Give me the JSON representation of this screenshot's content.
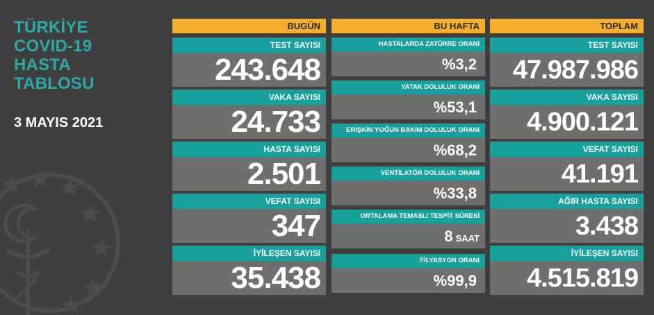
{
  "title_lines": [
    "TÜRKİYE",
    "COVID-19",
    "HASTA",
    "TABLOSU"
  ],
  "date": "3 MAYIS 2021",
  "colors": {
    "header": "#f5ad2d",
    "label": "#18a09c",
    "value_bg": "#6f6f6f",
    "title": "#2ea9a7",
    "background": "#3f3f3f"
  },
  "today": {
    "header": "BUGÜN",
    "items": [
      {
        "label": "TEST SAYISI",
        "value": "243.648"
      },
      {
        "label": "VAKA SAYISI",
        "value": "24.733"
      },
      {
        "label": "HASTA SAYISI",
        "value": "2.501"
      },
      {
        "label": "VEFAT SAYISI",
        "value": "347"
      },
      {
        "label": "İYİLEŞEN SAYISI",
        "value": "35.438"
      }
    ]
  },
  "week": {
    "header": "BU HAFTA",
    "items": [
      {
        "label": "HASTALARDA ZATÜRRE ORANI",
        "value": "%3,2",
        "unit": ""
      },
      {
        "label": "YATAK DOLULUK ORANI",
        "value": "%53,1",
        "unit": ""
      },
      {
        "label": "ERİŞKİN YOĞUN BAKIM DOLULUK ORANI",
        "value": "%68,2",
        "unit": ""
      },
      {
        "label": "VENTİLATÖR DOLULUK ORANI",
        "value": "%33,8",
        "unit": ""
      },
      {
        "label": "ORTALAMA TEMASLI TESPİT SÜRESİ",
        "value": "8",
        "unit": "SAAT"
      },
      {
        "label": "FİLYASYON ORANI",
        "value": "%99,9",
        "unit": ""
      }
    ]
  },
  "total": {
    "header": "TOPLAM",
    "items": [
      {
        "label": "TEST SAYISI",
        "value": "47.987.986"
      },
      {
        "label": "VAKA SAYISI",
        "value": "4.900.121"
      },
      {
        "label": "VEFAT SAYISI",
        "value": "41.191"
      },
      {
        "label": "AĞIR HASTA SAYISI",
        "value": "3.438"
      },
      {
        "label": "İYİLEŞEN SAYISI",
        "value": "4.515.819"
      }
    ]
  }
}
